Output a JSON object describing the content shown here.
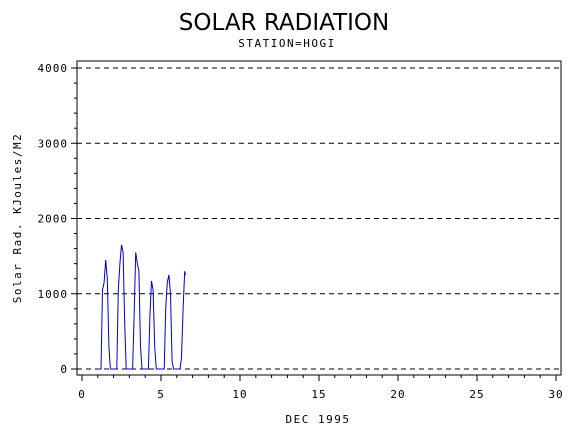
{
  "chart_data": {
    "type": "line",
    "title": "SOLAR RADIATION",
    "subtitle": "STATION=HOGI",
    "xlabel": "DEC 1995",
    "ylabel": "Solar Rad. KJoules/M2",
    "xlim": [
      0,
      30
    ],
    "ylim": [
      0,
      4000
    ],
    "x_ticks": [
      0,
      5,
      10,
      15,
      20,
      25,
      30
    ],
    "y_ticks": [
      0,
      1000,
      2000,
      3000,
      4000
    ],
    "grid": "horizontal dashed",
    "series": [
      {
        "color": "#0000cc",
        "x": [
          1.0,
          1.2,
          1.3,
          1.4,
          1.5,
          1.6,
          1.7,
          1.8,
          2.0,
          2.2,
          2.3,
          2.4,
          2.5,
          2.6,
          2.7,
          2.8,
          3.0,
          3.2,
          3.3,
          3.4,
          3.5,
          3.6,
          3.7,
          3.8,
          4.0,
          4.2,
          4.3,
          4.4,
          4.5,
          4.6,
          4.7,
          4.8,
          5.0,
          5.2,
          5.3,
          5.4,
          5.5,
          5.6,
          5.7,
          5.8,
          6.0,
          6.2,
          6.3,
          6.4,
          6.5,
          6.55
        ],
        "y": [
          0,
          0,
          1050,
          1150,
          1450,
          1200,
          300,
          0,
          0,
          0,
          1050,
          1400,
          1650,
          1550,
          600,
          0,
          0,
          0,
          700,
          1550,
          1400,
          1300,
          300,
          0,
          0,
          0,
          700,
          1170,
          1050,
          300,
          0,
          0,
          0,
          0,
          800,
          1150,
          1250,
          1000,
          100,
          0,
          0,
          0,
          150,
          800,
          1300,
          1250
        ]
      }
    ]
  }
}
